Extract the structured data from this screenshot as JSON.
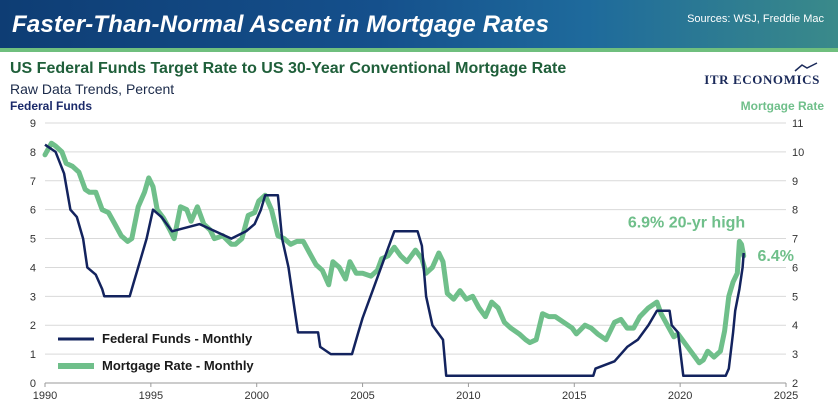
{
  "banner": {
    "title": "Faster-Than-Normal Ascent in Mortgage Rates",
    "sources": "Sources: WSJ, Freddie Mac"
  },
  "logo": {
    "text": "ITR ECONOMICS"
  },
  "colors": {
    "fed": "#13235e",
    "mortgage": "#6fbf8a",
    "banner": "#15508c",
    "accent": "#6fbf7e"
  },
  "chart_data": {
    "type": "line",
    "title": "US Federal Funds Target Rate to US 30-Year Conventional Mortgage Rate",
    "subtitle": "Raw Data Trends, Percent",
    "left_axis_title": "Federal Funds",
    "right_axis_title": "Mortgage Rate",
    "xlim": [
      1990,
      2025
    ],
    "x_ticks": [
      "1990",
      "1995",
      "2000",
      "2005",
      "2010",
      "2015",
      "2020",
      "2025"
    ],
    "y_left": {
      "ylim": [
        0,
        9
      ],
      "ticks": [
        "0",
        "1",
        "2",
        "3",
        "4",
        "5",
        "6",
        "7",
        "8",
        "9"
      ]
    },
    "y_right": {
      "ylim": [
        2,
        11
      ],
      "ticks": [
        "2",
        "3",
        "4",
        "5",
        "6",
        "7",
        "8",
        "9",
        "10",
        "11"
      ]
    },
    "grid": true,
    "legend": {
      "position": "bottom-left",
      "items": [
        "Federal Funds - Monthly",
        "Mortgage Rate - Monthly"
      ]
    },
    "annotations": [
      {
        "text": "6.9% 20-yr high",
        "x": 2022.6,
        "y": 6.9,
        "axis": "right"
      },
      {
        "text": "6.4%",
        "x": 2022.9,
        "y": 6.4,
        "axis": "right"
      }
    ],
    "series": [
      {
        "name": "Federal Funds - Monthly",
        "axis": "left",
        "points": [
          [
            1990.0,
            8.25
          ],
          [
            1990.5,
            8.0
          ],
          [
            1990.9,
            7.25
          ],
          [
            1991.2,
            6.0
          ],
          [
            1991.5,
            5.75
          ],
          [
            1991.8,
            5.0
          ],
          [
            1992.0,
            4.0
          ],
          [
            1992.4,
            3.75
          ],
          [
            1992.7,
            3.25
          ],
          [
            1992.8,
            3.0
          ],
          [
            1994.0,
            3.0
          ],
          [
            1994.2,
            3.5
          ],
          [
            1994.5,
            4.25
          ],
          [
            1994.8,
            5.0
          ],
          [
            1995.1,
            6.0
          ],
          [
            1995.5,
            5.75
          ],
          [
            1996.0,
            5.25
          ],
          [
            1997.3,
            5.5
          ],
          [
            1998.8,
            5.0
          ],
          [
            1999.5,
            5.25
          ],
          [
            1999.9,
            5.5
          ],
          [
            2000.2,
            6.0
          ],
          [
            2000.4,
            6.5
          ],
          [
            2001.0,
            6.5
          ],
          [
            2001.2,
            5.0
          ],
          [
            2001.5,
            4.0
          ],
          [
            2001.8,
            2.5
          ],
          [
            2001.95,
            1.75
          ],
          [
            2002.9,
            1.75
          ],
          [
            2003.0,
            1.25
          ],
          [
            2003.5,
            1.0
          ],
          [
            2004.5,
            1.0
          ],
          [
            2004.8,
            1.75
          ],
          [
            2005.0,
            2.25
          ],
          [
            2005.5,
            3.25
          ],
          [
            2006.0,
            4.25
          ],
          [
            2006.5,
            5.25
          ],
          [
            2007.6,
            5.25
          ],
          [
            2007.8,
            4.75
          ],
          [
            2008.0,
            3.0
          ],
          [
            2008.3,
            2.0
          ],
          [
            2008.8,
            1.5
          ],
          [
            2008.95,
            0.25
          ],
          [
            2015.9,
            0.25
          ],
          [
            2016.0,
            0.5
          ],
          [
            2016.9,
            0.75
          ],
          [
            2017.5,
            1.25
          ],
          [
            2018.0,
            1.5
          ],
          [
            2018.5,
            2.0
          ],
          [
            2018.9,
            2.5
          ],
          [
            2019.5,
            2.5
          ],
          [
            2019.6,
            2.0
          ],
          [
            2019.9,
            1.75
          ],
          [
            2020.15,
            0.25
          ],
          [
            2022.15,
            0.25
          ],
          [
            2022.3,
            0.5
          ],
          [
            2022.5,
            1.75
          ],
          [
            2022.6,
            2.5
          ],
          [
            2022.8,
            3.25
          ],
          [
            2022.95,
            4.0
          ],
          [
            2023.0,
            4.5
          ]
        ]
      },
      {
        "name": "Mortgage Rate - Monthly",
        "axis": "right",
        "points": [
          [
            1990.0,
            9.9
          ],
          [
            1990.3,
            10.3
          ],
          [
            1990.5,
            10.2
          ],
          [
            1990.8,
            10.0
          ],
          [
            1991.0,
            9.6
          ],
          [
            1991.3,
            9.5
          ],
          [
            1991.6,
            9.3
          ],
          [
            1991.9,
            8.7
          ],
          [
            1992.1,
            8.6
          ],
          [
            1992.4,
            8.6
          ],
          [
            1992.7,
            8.0
          ],
          [
            1993.0,
            7.9
          ],
          [
            1993.3,
            7.5
          ],
          [
            1993.6,
            7.1
          ],
          [
            1993.9,
            6.9
          ],
          [
            1994.1,
            7.0
          ],
          [
            1994.4,
            8.1
          ],
          [
            1994.7,
            8.6
          ],
          [
            1994.9,
            9.1
          ],
          [
            1995.1,
            8.8
          ],
          [
            1995.3,
            8.0
          ],
          [
            1995.6,
            7.7
          ],
          [
            1995.9,
            7.3
          ],
          [
            1996.1,
            7.0
          ],
          [
            1996.4,
            8.1
          ],
          [
            1996.7,
            8.0
          ],
          [
            1996.9,
            7.6
          ],
          [
            1997.2,
            8.1
          ],
          [
            1997.5,
            7.5
          ],
          [
            1997.8,
            7.3
          ],
          [
            1998.0,
            7.0
          ],
          [
            1998.4,
            7.1
          ],
          [
            1998.8,
            6.8
          ],
          [
            1999.0,
            6.8
          ],
          [
            1999.3,
            7.0
          ],
          [
            1999.6,
            7.8
          ],
          [
            1999.9,
            7.9
          ],
          [
            2000.1,
            8.3
          ],
          [
            2000.4,
            8.5
          ],
          [
            2000.7,
            8.0
          ],
          [
            2001.0,
            7.1
          ],
          [
            2001.3,
            7.0
          ],
          [
            2001.6,
            6.8
          ],
          [
            2001.9,
            6.9
          ],
          [
            2002.2,
            6.9
          ],
          [
            2002.5,
            6.5
          ],
          [
            2002.8,
            6.1
          ],
          [
            2003.1,
            5.9
          ],
          [
            2003.4,
            5.4
          ],
          [
            2003.6,
            6.2
          ],
          [
            2003.9,
            6.0
          ],
          [
            2004.2,
            5.6
          ],
          [
            2004.4,
            6.2
          ],
          [
            2004.7,
            5.8
          ],
          [
            2005.0,
            5.8
          ],
          [
            2005.4,
            5.7
          ],
          [
            2005.7,
            5.9
          ],
          [
            2005.9,
            6.3
          ],
          [
            2006.2,
            6.4
          ],
          [
            2006.5,
            6.7
          ],
          [
            2006.8,
            6.4
          ],
          [
            2007.1,
            6.2
          ],
          [
            2007.5,
            6.6
          ],
          [
            2007.8,
            6.3
          ],
          [
            2008.0,
            5.8
          ],
          [
            2008.3,
            6.0
          ],
          [
            2008.6,
            6.5
          ],
          [
            2008.8,
            6.2
          ],
          [
            2009.0,
            5.1
          ],
          [
            2009.3,
            4.9
          ],
          [
            2009.6,
            5.2
          ],
          [
            2009.9,
            4.9
          ],
          [
            2010.2,
            5.0
          ],
          [
            2010.5,
            4.6
          ],
          [
            2010.8,
            4.3
          ],
          [
            2011.1,
            4.8
          ],
          [
            2011.4,
            4.6
          ],
          [
            2011.7,
            4.1
          ],
          [
            2012.0,
            3.9
          ],
          [
            2012.4,
            3.7
          ],
          [
            2012.7,
            3.5
          ],
          [
            2012.9,
            3.4
          ],
          [
            2013.2,
            3.5
          ],
          [
            2013.5,
            4.4
          ],
          [
            2013.8,
            4.3
          ],
          [
            2014.1,
            4.3
          ],
          [
            2014.5,
            4.1
          ],
          [
            2014.9,
            3.9
          ],
          [
            2015.1,
            3.7
          ],
          [
            2015.5,
            4.0
          ],
          [
            2015.8,
            3.9
          ],
          [
            2016.1,
            3.7
          ],
          [
            2016.5,
            3.5
          ],
          [
            2016.9,
            4.1
          ],
          [
            2017.2,
            4.2
          ],
          [
            2017.5,
            3.9
          ],
          [
            2017.8,
            3.9
          ],
          [
            2018.1,
            4.3
          ],
          [
            2018.5,
            4.6
          ],
          [
            2018.9,
            4.8
          ],
          [
            2019.1,
            4.4
          ],
          [
            2019.4,
            4.0
          ],
          [
            2019.7,
            3.6
          ],
          [
            2019.9,
            3.7
          ],
          [
            2020.1,
            3.5
          ],
          [
            2020.4,
            3.2
          ],
          [
            2020.7,
            2.9
          ],
          [
            2020.9,
            2.7
          ],
          [
            2021.1,
            2.8
          ],
          [
            2021.3,
            3.1
          ],
          [
            2021.6,
            2.9
          ],
          [
            2021.9,
            3.1
          ],
          [
            2022.1,
            3.8
          ],
          [
            2022.3,
            5.0
          ],
          [
            2022.5,
            5.5
          ],
          [
            2022.7,
            5.8
          ],
          [
            2022.8,
            6.9
          ],
          [
            2022.9,
            6.8
          ],
          [
            2023.0,
            6.4
          ]
        ]
      }
    ]
  }
}
